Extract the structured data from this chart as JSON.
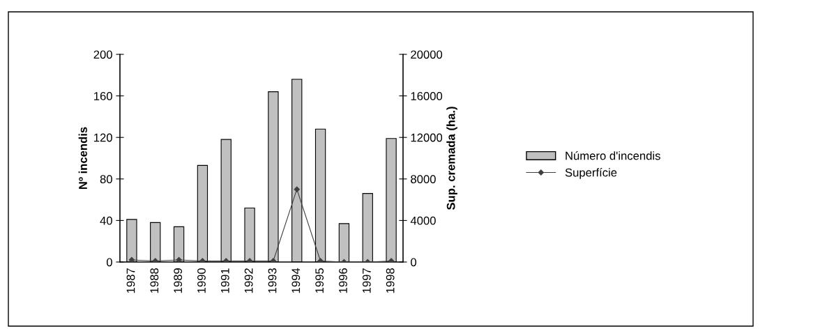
{
  "chart_data": {
    "type": "bar",
    "categories": [
      "1987",
      "1988",
      "1989",
      "1990",
      "1991",
      "1992",
      "1993",
      "1994",
      "1995",
      "1996",
      "1997",
      "1998"
    ],
    "series": [
      {
        "name": "Número d'incendis",
        "color": "#c0c0c0",
        "values": [
          41,
          38,
          34,
          93,
          118,
          52,
          164,
          176,
          128,
          37,
          66,
          119
        ]
      },
      {
        "name": "Superfície",
        "type": "line",
        "axis": "y2",
        "color": "#404040",
        "marker": "diamond",
        "values": [
          200,
          100,
          200,
          100,
          100,
          100,
          100,
          7000,
          100,
          0,
          0,
          100
        ]
      }
    ],
    "ylabel": "Nº incendis",
    "y2label": "Sup. cremada (ha.)",
    "ylim": [
      0,
      200
    ],
    "yticks": [
      0,
      40,
      80,
      120,
      160,
      200
    ],
    "y2lim": [
      0,
      20000
    ],
    "y2ticks": [
      0,
      4000,
      8000,
      12000,
      16000,
      20000
    ],
    "grid": false,
    "legend": "right"
  }
}
